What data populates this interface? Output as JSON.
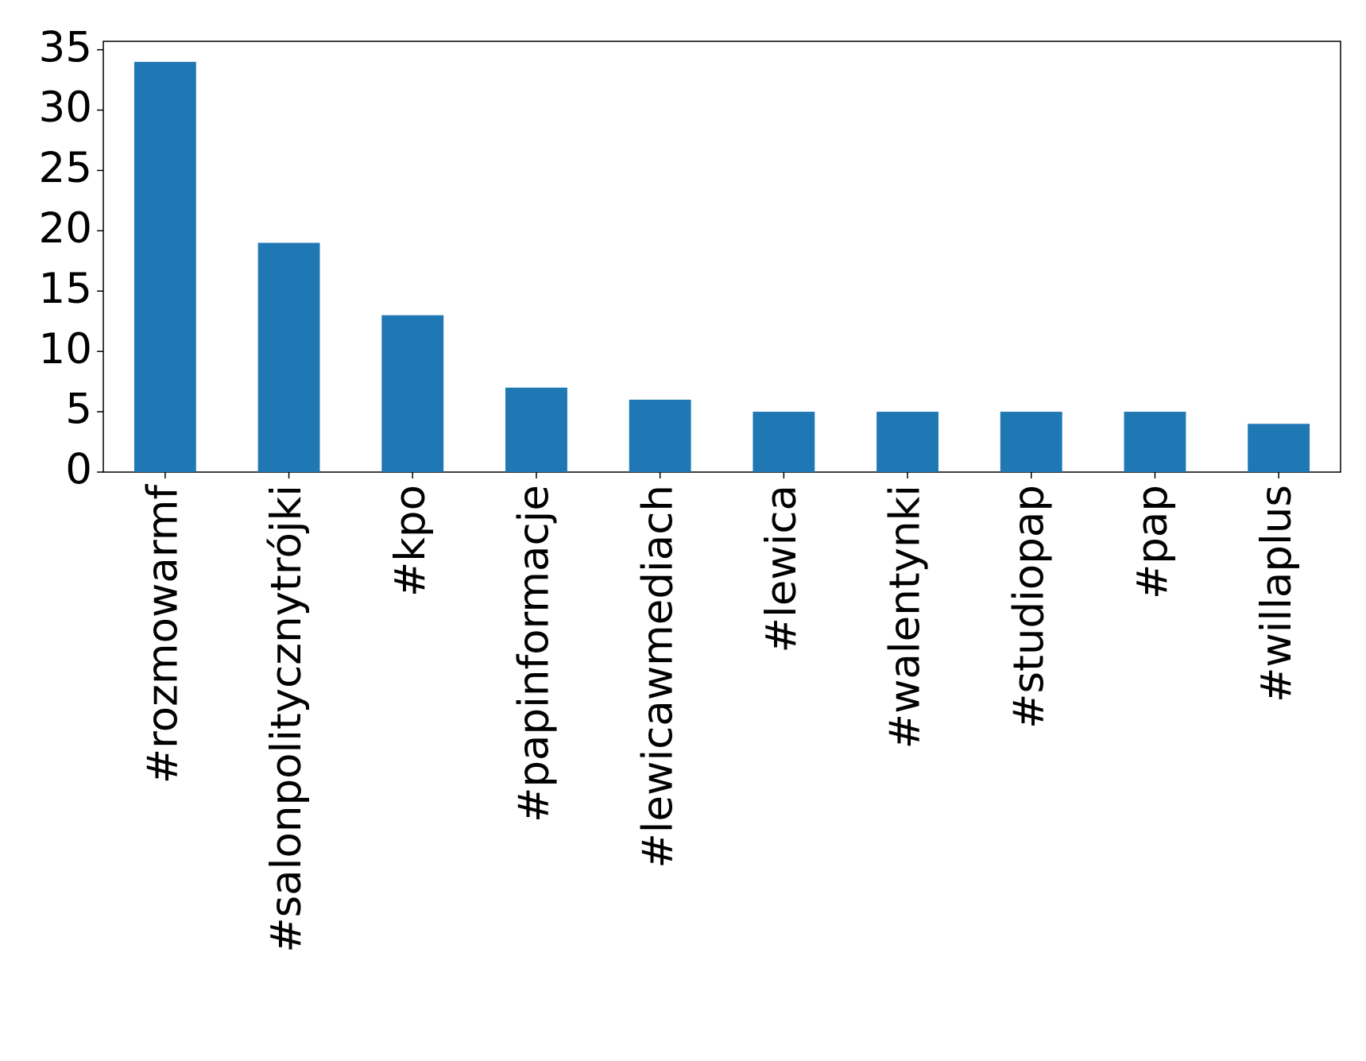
{
  "chart_data": {
    "type": "bar",
    "categories": [
      "#rozmowarmf",
      "#salonpolitycznytrójki",
      "#kpo",
      "#papinformacje",
      "#lewicawmediach",
      "#lewica",
      "#walentynki",
      "#studiopap",
      "#pap",
      "#willaplus"
    ],
    "values": [
      34,
      19,
      13,
      7,
      6,
      5,
      5,
      5,
      5,
      4
    ],
    "color": "#1f77b4",
    "ylim": [
      0,
      35.7
    ],
    "yticks": [
      0,
      5,
      10,
      15,
      20,
      25,
      30,
      35
    ],
    "grid": false
  }
}
